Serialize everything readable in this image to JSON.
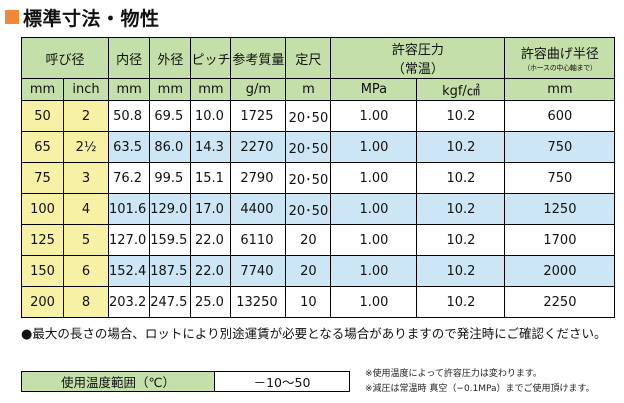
{
  "title": "標準寸法・物性",
  "colors": {
    "header": "#c4dfa9",
    "size_cells": "#f7f1a6",
    "shaded_rows": "#cde6f5",
    "title_square": "#f0873a"
  },
  "table": {
    "headers": {
      "nominal": "呼び径",
      "inner": "内径",
      "outer": "外径",
      "pitch": "ピッチ",
      "weight": "参考質量",
      "length": "定尺",
      "pressure": "許容圧力",
      "pressure_sub": "（常温）",
      "radius": "許容曲げ半径",
      "radius_sub": "（ホースの中心軸まで）"
    },
    "units": {
      "mm": "mm",
      "inch": "inch",
      "inner": "mm",
      "outer": "mm",
      "pitch": "mm",
      "weight": "g/m",
      "length": "m",
      "mpa": "MPa",
      "kgf": "kgf/㎠",
      "radius": "mm"
    },
    "rows": [
      {
        "mm": "50",
        "inch": "2",
        "inner": "50.8",
        "outer": "69.5",
        "pitch": "10.0",
        "weight": "1725",
        "length": "20･50",
        "mpa": "1.00",
        "kgf": "10.2",
        "radius": "600"
      },
      {
        "mm": "65",
        "inch": "2½",
        "inner": "63.5",
        "outer": "86.0",
        "pitch": "14.3",
        "weight": "2270",
        "length": "20･50",
        "mpa": "1.00",
        "kgf": "10.2",
        "radius": "750"
      },
      {
        "mm": "75",
        "inch": "3",
        "inner": "76.2",
        "outer": "99.5",
        "pitch": "15.1",
        "weight": "2790",
        "length": "20･50",
        "mpa": "1.00",
        "kgf": "10.2",
        "radius": "750"
      },
      {
        "mm": "100",
        "inch": "4",
        "inner": "101.6",
        "outer": "129.0",
        "pitch": "17.0",
        "weight": "4400",
        "length": "20･50",
        "mpa": "1.00",
        "kgf": "10.2",
        "radius": "1250"
      },
      {
        "mm": "125",
        "inch": "5",
        "inner": "127.0",
        "outer": "159.5",
        "pitch": "22.0",
        "weight": "6110",
        "length": "20",
        "mpa": "1.00",
        "kgf": "10.2",
        "radius": "1700"
      },
      {
        "mm": "150",
        "inch": "6",
        "inner": "152.4",
        "outer": "187.5",
        "pitch": "22.0",
        "weight": "7740",
        "length": "20",
        "mpa": "1.00",
        "kgf": "10.2",
        "radius": "2000"
      },
      {
        "mm": "200",
        "inch": "8",
        "inner": "203.2",
        "outer": "247.5",
        "pitch": "25.0",
        "weight": "13250",
        "length": "10",
        "mpa": "1.00",
        "kgf": "10.2",
        "radius": "2250"
      }
    ]
  },
  "note": {
    "bullet": "●",
    "text": "最大の長さの場合、ロットにより別途運賃が必要となる場合がありますので発注時にご確認ください。"
  },
  "temperature": {
    "label": "使用温度範囲（℃）",
    "value": "－10～50"
  },
  "footnotes": [
    "※使用温度によって許容圧力は変わります。",
    "※減圧は常温時 真空（−0.1MPa）までご使用頂けます。"
  ]
}
